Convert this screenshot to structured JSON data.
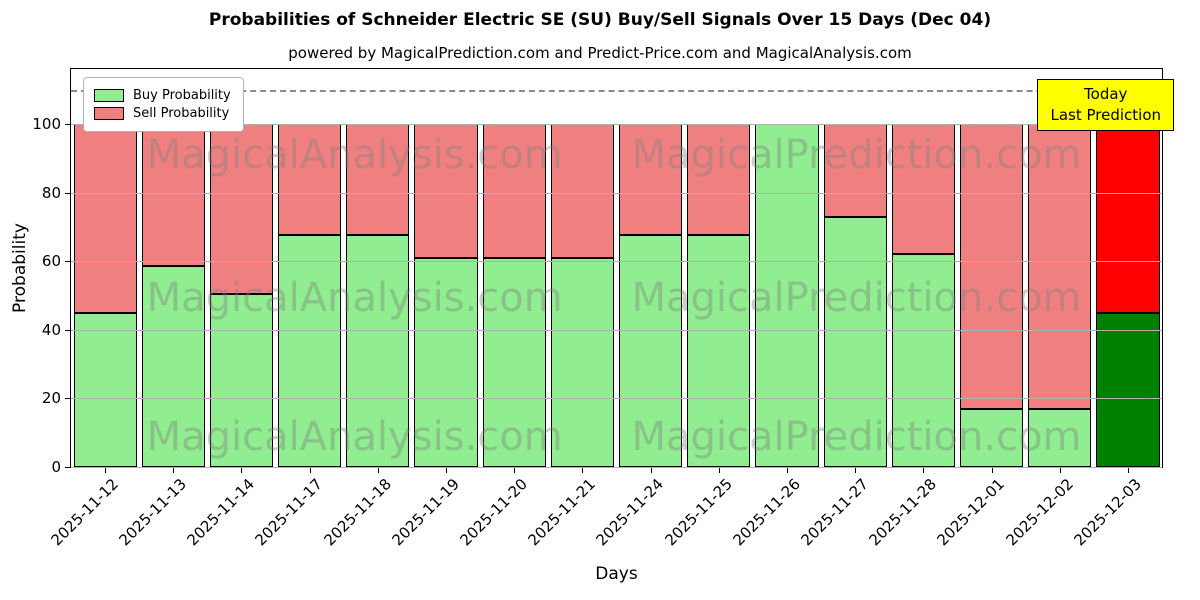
{
  "chart_data": {
    "type": "bar",
    "stacked": true,
    "title": "Probabilities of Schneider Electric SE (SU) Buy/Sell Signals Over 15 Days (Dec 04)",
    "subtitle": "powered by MagicalPrediction.com and Predict-Price.com and MagicalAnalysis.com",
    "xlabel": "Days",
    "ylabel": "Probability",
    "yticks": [
      0,
      20,
      40,
      60,
      80,
      100
    ],
    "ylim": [
      0,
      116
    ],
    "dashed_line_y": 110,
    "grid": true,
    "legend_position": "upper-left",
    "categories": [
      "2025-11-12",
      "2025-11-13",
      "2025-11-14",
      "2025-11-17",
      "2025-11-18",
      "2025-11-19",
      "2025-11-20",
      "2025-11-21",
      "2025-11-24",
      "2025-11-25",
      "2025-11-26",
      "2025-11-27",
      "2025-11-28",
      "2025-12-01",
      "2025-12-02",
      "2025-12-03"
    ],
    "series": [
      {
        "name": "Buy Probability",
        "color": "#90EE90",
        "last_bar_color": "#008000",
        "values": [
          45,
          58.5,
          50.5,
          67.5,
          67.5,
          61,
          61,
          61,
          67.5,
          67.5,
          100,
          73,
          62,
          17,
          17,
          45
        ]
      },
      {
        "name": "Sell Probability",
        "color": "#F08080",
        "last_bar_color": "#FF0000",
        "values": [
          55,
          41.5,
          49.5,
          32.5,
          32.5,
          39,
          39,
          39,
          32.5,
          32.5,
          0,
          27,
          38,
          83,
          83,
          55
        ]
      }
    ],
    "annotation": {
      "lines": [
        "Today",
        "Last Prediction"
      ],
      "bg": "#FFFF00"
    },
    "watermarks": [
      "MagicalAnalysis.com",
      "MagicalPrediction.com"
    ]
  }
}
